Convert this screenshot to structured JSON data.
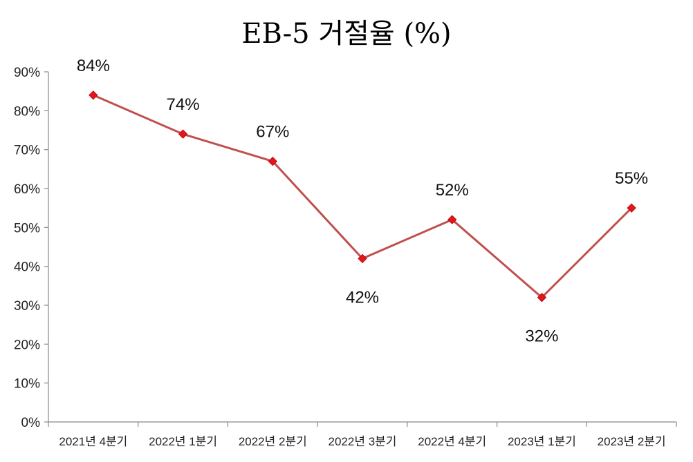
{
  "chart_data": {
    "type": "line",
    "title": "EB-5 거절율 (%)",
    "xlabel": "",
    "ylabel": "",
    "categories": [
      "2021년 4분기",
      "2022년 1분기",
      "2022년 2분기",
      "2022년 3분기",
      "2022년 4분기",
      "2023년 1분기",
      "2023년 2분기"
    ],
    "values": [
      84,
      74,
      67,
      42,
      52,
      32,
      55
    ],
    "data_labels": [
      "84%",
      "74%",
      "67%",
      "42%",
      "52%",
      "32%",
      "55%"
    ],
    "ylim": [
      0,
      90
    ],
    "yticks": [
      "0%",
      "10%",
      "20%",
      "30%",
      "40%",
      "50%",
      "60%",
      "70%",
      "80%",
      "90%"
    ],
    "grid": false,
    "legend": "none",
    "line_color": "#c0504d",
    "marker_color": "#e8131b"
  }
}
